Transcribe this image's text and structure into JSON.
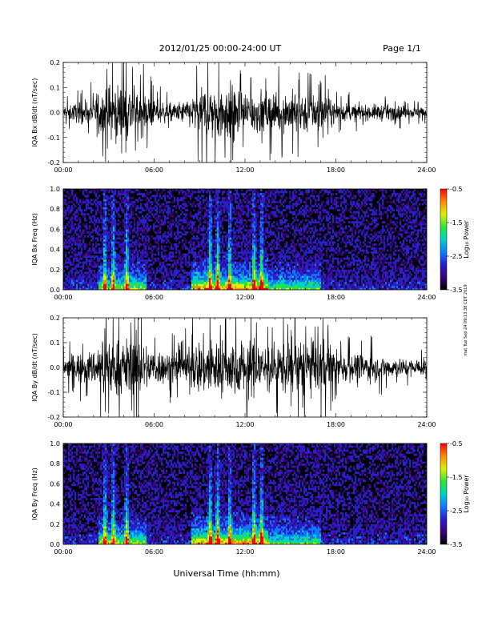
{
  "header": {
    "title": "2012/01/25  00:00-24:00 UT",
    "page": "Page 1/1"
  },
  "xlabel": "Universal Time (hh:mm)",
  "credit": "mat Tue Sep 24 09:13:38 CDT 2019",
  "colors": {
    "waveform": "#000000",
    "colormap": [
      "#000000",
      "#3a007a",
      "#2a1ec8",
      "#0a78ff",
      "#00d2c8",
      "#28e632",
      "#dcf000",
      "#ff8c00",
      "#ff0000"
    ]
  },
  "chart_data": [
    {
      "type": "line",
      "ylabel": "IQA Bx dB/dt (nT/sec)",
      "xlim": [
        0,
        24
      ],
      "ylim": [
        -0.2,
        0.2
      ],
      "x_ticks": [
        "00:00",
        "06:00",
        "12:00",
        "18:00",
        "24:00"
      ],
      "y_ticks": [
        "-0.2",
        "-0.1",
        "0.0",
        "0.1",
        "0.2"
      ],
      "envelope": {
        "hours": [
          0,
          1,
          2,
          2.5,
          3,
          3.5,
          4,
          4.5,
          5,
          6,
          7,
          8,
          9,
          9.5,
          10,
          10.5,
          11,
          11.5,
          12,
          12.5,
          13,
          14,
          15,
          16,
          17,
          18,
          19,
          20,
          21,
          22,
          23,
          24
        ],
        "amplitude": [
          0.05,
          0.07,
          0.09,
          0.2,
          0.2,
          0.2,
          0.2,
          0.2,
          0.16,
          0.09,
          0.06,
          0.08,
          0.15,
          0.2,
          0.2,
          0.2,
          0.2,
          0.19,
          0.16,
          0.15,
          0.15,
          0.13,
          0.15,
          0.14,
          0.13,
          0.07,
          0.06,
          0.05,
          0.06,
          0.05,
          0.04,
          0.04
        ]
      }
    },
    {
      "type": "heatmap",
      "ylabel": "IQA Bx Freq (Hz)",
      "xlim": [
        0,
        24
      ],
      "ylim": [
        0,
        1.0
      ],
      "x_ticks": [
        "00:00",
        "06:00",
        "12:00",
        "18:00",
        "24:00"
      ],
      "y_ticks": [
        "0.0",
        "0.2",
        "0.4",
        "0.6",
        "0.8",
        "1.0"
      ],
      "colorbar": {
        "label": "Log₁₀ Power",
        "range": [
          -3.5,
          -0.5
        ],
        "ticks": [
          "-0.5",
          "-1.5",
          "-2.5",
          "-3.5"
        ]
      },
      "bursts_hours": [
        2.75,
        3.3,
        4.2,
        9.7,
        10.2,
        11.0,
        12.6,
        13.1
      ]
    },
    {
      "type": "line",
      "ylabel": "IQA By dB/dt (nT/sec)",
      "xlim": [
        0,
        24
      ],
      "ylim": [
        -0.2,
        0.2
      ],
      "x_ticks": [
        "00:00",
        "06:00",
        "12:00",
        "18:00",
        "24:00"
      ],
      "y_ticks": [
        "-0.2",
        "-0.1",
        "0.0",
        "0.1",
        "0.2"
      ],
      "envelope": {
        "hours": [
          0,
          1,
          2,
          2.5,
          3,
          3.5,
          4,
          4.5,
          5,
          6,
          7,
          8,
          9,
          9.5,
          10,
          10.5,
          11,
          11.5,
          12,
          12.5,
          13,
          14,
          15,
          16,
          17,
          18,
          19,
          20,
          21,
          22,
          23,
          24
        ],
        "amplitude": [
          0.08,
          0.1,
          0.12,
          0.2,
          0.2,
          0.2,
          0.2,
          0.2,
          0.2,
          0.13,
          0.11,
          0.12,
          0.2,
          0.2,
          0.2,
          0.2,
          0.2,
          0.2,
          0.2,
          0.2,
          0.19,
          0.17,
          0.17,
          0.2,
          0.2,
          0.12,
          0.1,
          0.1,
          0.08,
          0.07,
          0.06,
          0.06
        ]
      }
    },
    {
      "type": "heatmap",
      "ylabel": "IQA By Freq (Hz)",
      "xlim": [
        0,
        24
      ],
      "ylim": [
        0,
        1.0
      ],
      "x_ticks": [
        "00:00",
        "06:00",
        "12:00",
        "18:00",
        "24:00"
      ],
      "y_ticks": [
        "0.0",
        "0.2",
        "0.4",
        "0.6",
        "0.8",
        "1.0"
      ],
      "colorbar": {
        "label": "Log₁₀ Power",
        "range": [
          -3.5,
          -0.5
        ],
        "ticks": [
          "-0.5",
          "-1.5",
          "-2.5",
          "-3.5"
        ]
      },
      "bursts_hours": [
        2.75,
        3.3,
        4.2,
        9.7,
        10.2,
        11.0,
        12.6,
        13.1
      ]
    }
  ]
}
